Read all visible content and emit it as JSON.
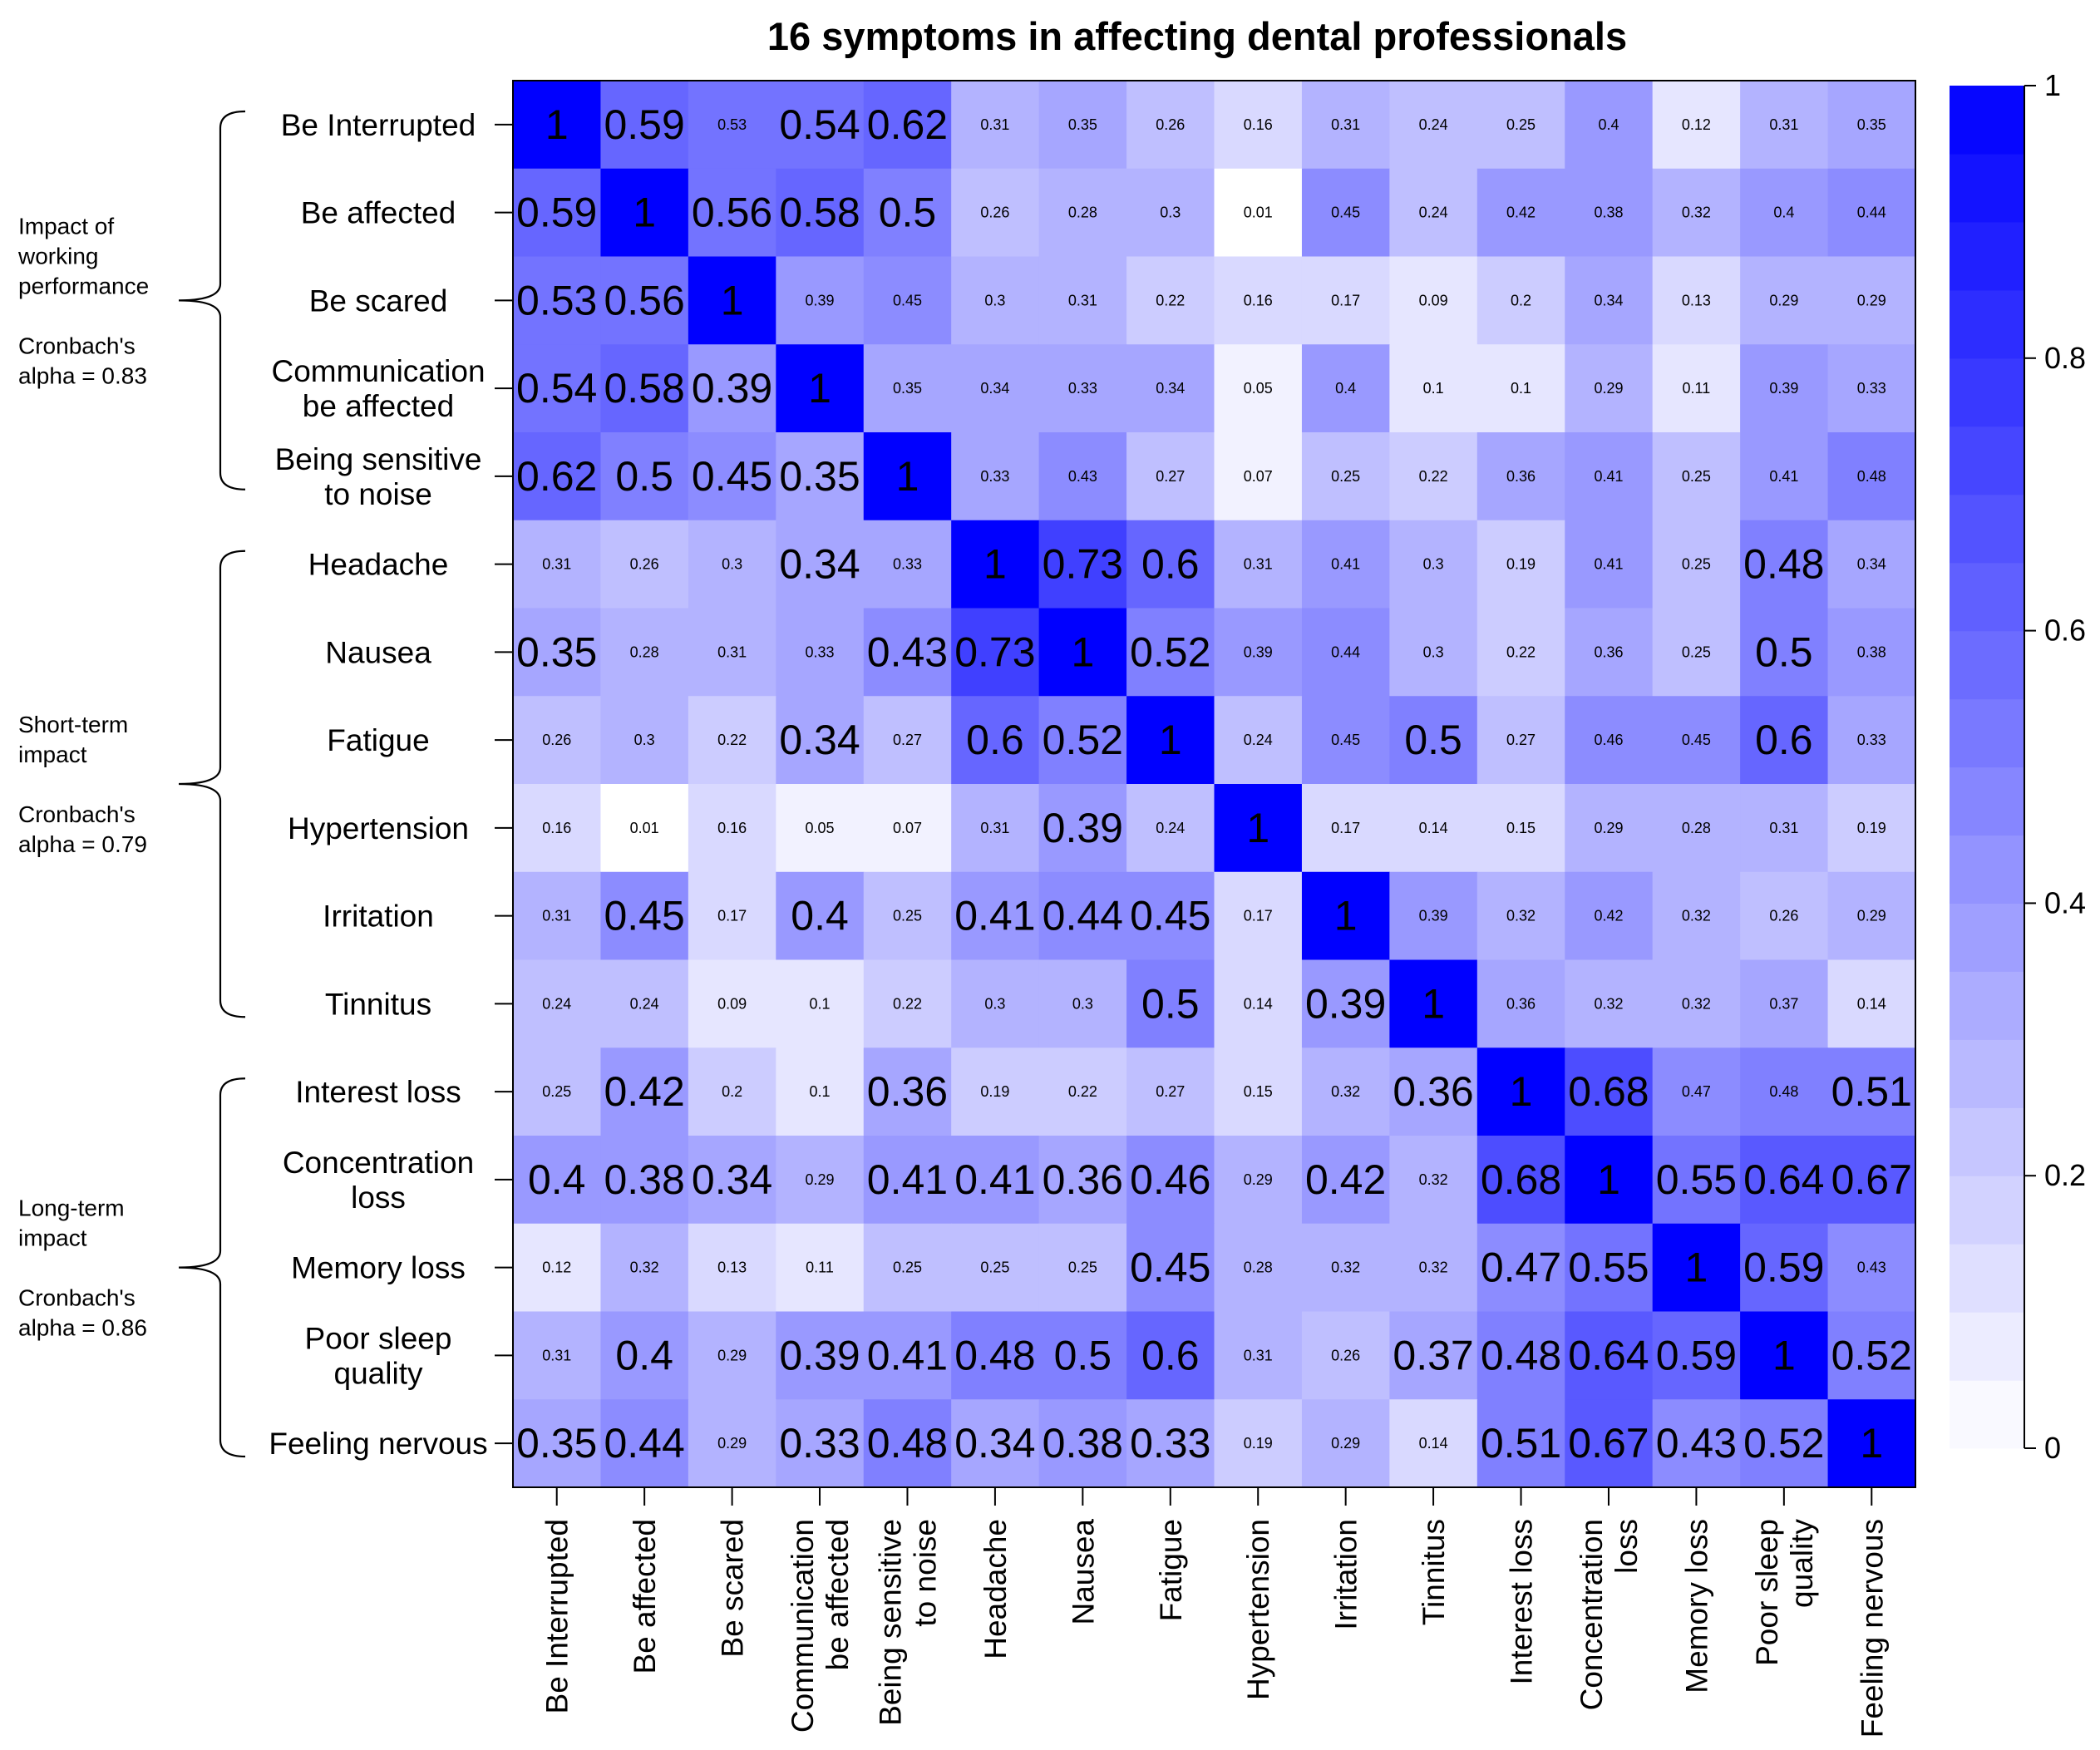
{
  "chart_data": {
    "type": "heatmap",
    "title": "16 symptoms in affecting dental professionals",
    "labels": [
      [
        "Be Interrupted"
      ],
      [
        "Be affected"
      ],
      [
        "Be scared"
      ],
      [
        "Communication",
        "be affected"
      ],
      [
        "Being sensitive",
        "to noise"
      ],
      [
        "Headache"
      ],
      [
        "Nausea"
      ],
      [
        "Fatigue"
      ],
      [
        "Hypertension"
      ],
      [
        "Irritation"
      ],
      [
        "Tinnitus"
      ],
      [
        "Interest loss"
      ],
      [
        "Concentration",
        "loss"
      ],
      [
        "Memory loss"
      ],
      [
        "Poor sleep",
        "quality"
      ],
      [
        "Feeling nervous"
      ]
    ],
    "values": [
      [
        1,
        0.59,
        0.53,
        0.54,
        0.62,
        0.31,
        0.35,
        0.26,
        0.16,
        0.31,
        0.24,
        0.25,
        0.4,
        0.12,
        0.31,
        0.35
      ],
      [
        0.59,
        1,
        0.56,
        0.58,
        0.5,
        0.26,
        0.28,
        0.3,
        0.01,
        0.45,
        0.24,
        0.42,
        0.38,
        0.32,
        0.4,
        0.44
      ],
      [
        0.53,
        0.56,
        1,
        0.39,
        0.45,
        0.3,
        0.31,
        0.22,
        0.16,
        0.17,
        0.09,
        0.2,
        0.34,
        0.13,
        0.29,
        0.29
      ],
      [
        0.54,
        0.58,
        0.39,
        1,
        0.35,
        0.34,
        0.33,
        0.34,
        0.05,
        0.4,
        0.1,
        0.1,
        0.29,
        0.11,
        0.39,
        0.33
      ],
      [
        0.62,
        0.5,
        0.45,
        0.35,
        1,
        0.33,
        0.43,
        0.27,
        0.07,
        0.25,
        0.22,
        0.36,
        0.41,
        0.25,
        0.41,
        0.48
      ],
      [
        0.31,
        0.26,
        0.3,
        0.34,
        0.33,
        1,
        0.73,
        0.6,
        0.31,
        0.41,
        0.3,
        0.19,
        0.41,
        0.25,
        0.48,
        0.34
      ],
      [
        0.35,
        0.28,
        0.31,
        0.33,
        0.43,
        0.73,
        1,
        0.52,
        0.39,
        0.44,
        0.3,
        0.22,
        0.36,
        0.25,
        0.5,
        0.38
      ],
      [
        0.26,
        0.3,
        0.22,
        0.34,
        0.27,
        0.6,
        0.52,
        1,
        0.24,
        0.45,
        0.5,
        0.27,
        0.46,
        0.45,
        0.6,
        0.33
      ],
      [
        0.16,
        0.01,
        0.16,
        0.05,
        0.07,
        0.31,
        0.39,
        0.24,
        1,
        0.17,
        0.14,
        0.15,
        0.29,
        0.28,
        0.31,
        0.19
      ],
      [
        0.31,
        0.45,
        0.17,
        0.4,
        0.25,
        0.41,
        0.44,
        0.45,
        0.17,
        1,
        0.39,
        0.32,
        0.42,
        0.32,
        0.26,
        0.29
      ],
      [
        0.24,
        0.24,
        0.09,
        0.1,
        0.22,
        0.3,
        0.3,
        0.5,
        0.14,
        0.39,
        1,
        0.36,
        0.32,
        0.32,
        0.37,
        0.14
      ],
      [
        0.25,
        0.42,
        0.2,
        0.1,
        0.36,
        0.19,
        0.22,
        0.27,
        0.15,
        0.32,
        0.36,
        1,
        0.68,
        0.47,
        0.48,
        0.51
      ],
      [
        0.4,
        0.38,
        0.34,
        0.29,
        0.41,
        0.41,
        0.36,
        0.46,
        0.29,
        0.42,
        0.32,
        0.68,
        1,
        0.55,
        0.64,
        0.67
      ],
      [
        0.12,
        0.32,
        0.13,
        0.11,
        0.25,
        0.25,
        0.25,
        0.45,
        0.28,
        0.32,
        0.32,
        0.47,
        0.55,
        1,
        0.59,
        0.43
      ],
      [
        0.31,
        0.4,
        0.29,
        0.39,
        0.41,
        0.48,
        0.5,
        0.6,
        0.31,
        0.26,
        0.37,
        0.48,
        0.64,
        0.59,
        1,
        0.52
      ],
      [
        0.35,
        0.44,
        0.29,
        0.33,
        0.48,
        0.34,
        0.38,
        0.33,
        0.19,
        0.29,
        0.14,
        0.51,
        0.67,
        0.43,
        0.52,
        1
      ]
    ],
    "large_label_cells": [
      [
        0,
        0
      ],
      [
        0,
        1
      ],
      [
        0,
        3
      ],
      [
        0,
        4
      ],
      [
        1,
        0
      ],
      [
        1,
        1
      ],
      [
        1,
        2
      ],
      [
        1,
        3
      ],
      [
        1,
        4
      ],
      [
        2,
        0
      ],
      [
        2,
        1
      ],
      [
        2,
        2
      ],
      [
        3,
        0
      ],
      [
        3,
        1
      ],
      [
        3,
        2
      ],
      [
        3,
        3
      ],
      [
        4,
        0
      ],
      [
        4,
        1
      ],
      [
        4,
        2
      ],
      [
        4,
        3
      ],
      [
        4,
        4
      ],
      [
        5,
        3
      ],
      [
        5,
        5
      ],
      [
        5,
        6
      ],
      [
        5,
        7
      ],
      [
        5,
        14
      ],
      [
        6,
        0
      ],
      [
        6,
        4
      ],
      [
        6,
        5
      ],
      [
        6,
        6
      ],
      [
        6,
        7
      ],
      [
        6,
        14
      ],
      [
        7,
        3
      ],
      [
        7,
        5
      ],
      [
        7,
        6
      ],
      [
        7,
        7
      ],
      [
        7,
        10
      ],
      [
        7,
        14
      ],
      [
        8,
        6
      ],
      [
        8,
        8
      ],
      [
        9,
        1
      ],
      [
        9,
        3
      ],
      [
        9,
        5
      ],
      [
        9,
        6
      ],
      [
        9,
        7
      ],
      [
        9,
        9
      ],
      [
        10,
        7
      ],
      [
        10,
        9
      ],
      [
        10,
        10
      ],
      [
        11,
        1
      ],
      [
        11,
        4
      ],
      [
        11,
        10
      ],
      [
        11,
        11
      ],
      [
        11,
        12
      ],
      [
        11,
        15
      ],
      [
        12,
        0
      ],
      [
        12,
        1
      ],
      [
        12,
        2
      ],
      [
        12,
        4
      ],
      [
        12,
        5
      ],
      [
        12,
        6
      ],
      [
        12,
        7
      ],
      [
        12,
        9
      ],
      [
        12,
        11
      ],
      [
        12,
        12
      ],
      [
        12,
        13
      ],
      [
        12,
        14
      ],
      [
        12,
        15
      ],
      [
        13,
        7
      ],
      [
        13,
        11
      ],
      [
        13,
        12
      ],
      [
        13,
        13
      ],
      [
        13,
        14
      ],
      [
        14,
        1
      ],
      [
        14,
        3
      ],
      [
        14,
        4
      ],
      [
        14,
        5
      ],
      [
        14,
        6
      ],
      [
        14,
        7
      ],
      [
        14,
        10
      ],
      [
        14,
        11
      ],
      [
        14,
        12
      ],
      [
        14,
        13
      ],
      [
        14,
        14
      ],
      [
        14,
        15
      ],
      [
        15,
        0
      ],
      [
        15,
        1
      ],
      [
        15,
        3
      ],
      [
        15,
        4
      ],
      [
        15,
        5
      ],
      [
        15,
        6
      ],
      [
        15,
        7
      ],
      [
        15,
        11
      ],
      [
        15,
        12
      ],
      [
        15,
        13
      ],
      [
        15,
        14
      ],
      [
        15,
        15
      ]
    ],
    "colorbar": {
      "range": [
        0,
        1
      ],
      "ticks": [
        "0",
        "0.2",
        "0.4",
        "0.6",
        "0.8",
        "1"
      ],
      "min_color": "#ffffff",
      "max_color": "#0000ff"
    },
    "groups": [
      {
        "lines": [
          "Impact of",
          "working",
          "performance",
          "",
          "Cronbach's",
          "alpha = 0.83"
        ],
        "rows": [
          0,
          4
        ]
      },
      {
        "lines": [
          "Short-term",
          "impact",
          "",
          "Cronbach's",
          "alpha = 0.79"
        ],
        "rows": [
          5,
          10
        ]
      },
      {
        "lines": [
          "Long-term",
          "impact",
          "",
          "Cronbach's",
          "alpha = 0.86"
        ],
        "rows": [
          11,
          15
        ]
      }
    ]
  }
}
